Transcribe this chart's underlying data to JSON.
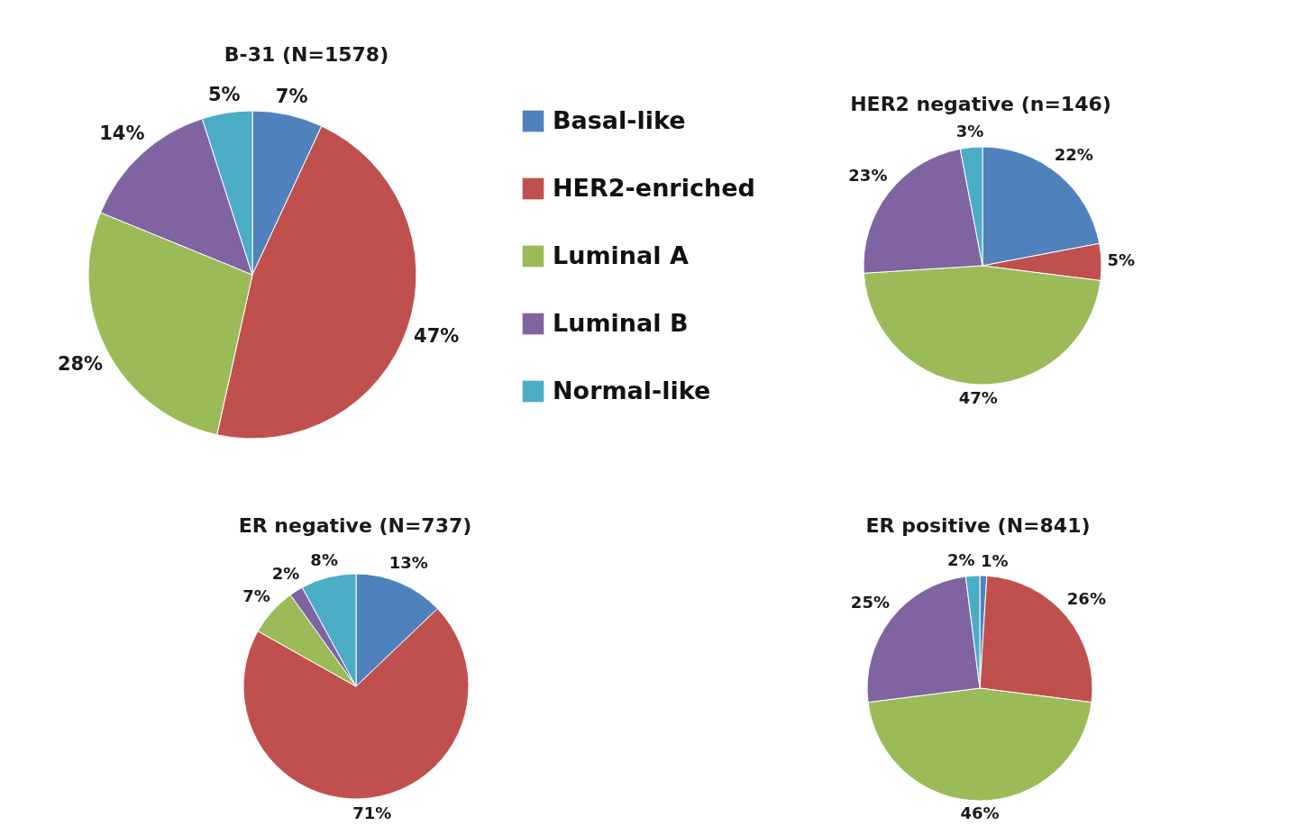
{
  "chart_data": [
    {
      "type": "pie",
      "title": "B-31 (N=1578)",
      "categories": [
        "Basal-like",
        "HER2-enriched",
        "Luminal A",
        "Luminal B",
        "Normal-like"
      ],
      "values": [
        7,
        47,
        28,
        14,
        5
      ],
      "value_labels": [
        "7%",
        "47%",
        "28%",
        "14%",
        "5%"
      ],
      "colors": [
        "#4f81bd",
        "#c0504d",
        "#9bbb59",
        "#8064a2",
        "#4bacc6"
      ],
      "legend": "right"
    },
    {
      "type": "pie",
      "title": "HER2 negative (n=146)",
      "categories": [
        null,
        null,
        null,
        null,
        null
      ],
      "values": [
        22,
        5,
        47,
        23,
        3
      ],
      "value_labels": [
        "22%",
        "5%",
        "47%",
        "23%",
        "3%"
      ],
      "colors": [
        "#4f81bd",
        "#c0504d",
        "#9bbb59",
        "#8064a2",
        "#4bacc6"
      ],
      "legend": false
    },
    {
      "type": "pie",
      "title": "ER negative (N=737)",
      "categories": [
        null,
        null,
        null,
        null,
        null
      ],
      "values": [
        13,
        71,
        7,
        2,
        8
      ],
      "value_labels": [
        "13%",
        "71%",
        "7%",
        "2%",
        "8%"
      ],
      "colors": [
        "#4f81bd",
        "#c0504d",
        "#9bbb59",
        "#8064a2",
        "#4bacc6"
      ],
      "legend": false
    },
    {
      "type": "pie",
      "title": "ER positive (N=841)",
      "categories": [
        null,
        null,
        null,
        null,
        null
      ],
      "values": [
        1,
        26,
        46,
        25,
        2
      ],
      "value_labels": [
        "1%",
        "26%",
        "46%",
        "25%",
        "2%"
      ],
      "colors": [
        "#4f81bd",
        "#c0504d",
        "#9bbb59",
        "#8064a2",
        "#4bacc6"
      ],
      "legend": false
    }
  ]
}
